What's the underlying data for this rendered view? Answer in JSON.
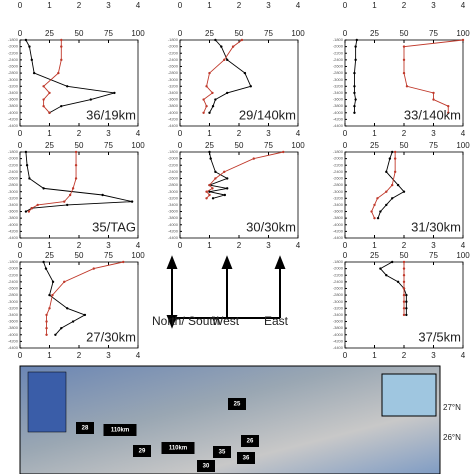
{
  "chart_data": {
    "type": "profile",
    "xlim": [
      0,
      100
    ],
    "xticks": [
      0,
      25,
      50,
      75,
      100
    ],
    "x2lim": [
      0,
      4
    ],
    "x2ticks": [
      0,
      1,
      2,
      3,
      4
    ],
    "ylim": [
      -1800,
      -4400
    ],
    "yticks": [
      -1800,
      -2000,
      -2200,
      -2400,
      -2600,
      -2800,
      -3000,
      -3200,
      -3400,
      -3600,
      -3800,
      -4000,
      -4200,
      -4400
    ],
    "panels": [
      {
        "label": "36/19km",
        "depths": [
          -1800,
          -2000,
          -2400,
          -2800,
          -3200,
          -3400,
          -3600,
          -3800,
          -4000
        ],
        "series": [
          {
            "color": "#000000",
            "values": [
              5,
              8,
              10,
              12,
              40,
              80,
              60,
              35,
              25
            ]
          },
          {
            "color": "#c0392b",
            "axis": "x2",
            "values": [
              1.4,
              1.4,
              1.4,
              1.3,
              0.8,
              1.0,
              0.8,
              0.8,
              1.0
            ]
          }
        ]
      },
      {
        "label": "29/140km",
        "depths": [
          -1800,
          -2000,
          -2400,
          -2800,
          -3200,
          -3400,
          -3600,
          -3800,
          -4000
        ],
        "series": [
          {
            "color": "#000000",
            "values": [
              30,
              35,
              40,
              55,
              60,
              40,
              30,
              28,
              25
            ]
          },
          {
            "color": "#c0392b",
            "axis": "x2",
            "values": [
              2.1,
              1.8,
              1.5,
              1.0,
              0.9,
              1.1,
              0.8,
              0.9,
              0.8
            ]
          }
        ]
      },
      {
        "label": "33/140km",
        "depths": [
          -1800,
          -2000,
          -2400,
          -2800,
          -3200,
          -3400,
          -3600,
          -3800,
          -4000
        ],
        "series": [
          {
            "color": "#000000",
            "values": [
              10,
              9,
              9,
              8,
              8,
              8,
              9,
              8,
              8
            ]
          },
          {
            "color": "#c0392b",
            "axis": "x2",
            "values": [
              4,
              2.0,
              2.0,
              2.0,
              2.1,
              3.0,
              3.0,
              3.5,
              3.5
            ]
          }
        ]
      },
      {
        "label": "35/TAG",
        "depths": [
          -1800,
          -2200,
          -2600,
          -2900,
          -3100,
          -3300,
          -3400,
          -3500,
          -3600
        ],
        "series": [
          {
            "color": "#000000",
            "values": [
              5,
              6,
              8,
              20,
              70,
              95,
              40,
              10,
              5
            ]
          },
          {
            "color": "#c0392b",
            "axis": "x2",
            "values": [
              1.9,
              1.9,
              1.9,
              1.8,
              1.7,
              1.5,
              0.6,
              0.4,
              0.3
            ]
          }
        ]
      },
      {
        "label": "30/30km",
        "depths": [
          -1800,
          -2000,
          -2400,
          -2600,
          -2800,
          -2900,
          -3000,
          -3100,
          -3200
        ],
        "series": [
          {
            "color": "#000000",
            "values": [
              25,
              26,
              30,
              40,
              25,
              40,
              25,
              38,
              28
            ]
          },
          {
            "color": "#c0392b",
            "axis": "x2",
            "values": [
              3.5,
              2.5,
              1.5,
              1.2,
              1.0,
              1.1,
              0.9,
              1.0,
              0.9
            ]
          }
        ]
      },
      {
        "label": "31/30km",
        "depths": [
          -1800,
          -2000,
          -2400,
          -2800,
          -3000,
          -3200,
          -3400,
          -3600,
          -3800
        ],
        "series": [
          {
            "color": "#000000",
            "values": [
              40,
              38,
              35,
              45,
              50,
              40,
              35,
              30,
              28
            ]
          },
          {
            "color": "#c0392b",
            "axis": "x2",
            "values": [
              1.7,
              1.7,
              1.7,
              1.6,
              1.4,
              1.1,
              1.0,
              0.9,
              1.0
            ]
          }
        ]
      },
      {
        "label": "27/30km",
        "depths": [
          -1800,
          -2000,
          -2400,
          -2800,
          -3200,
          -3400,
          -3600,
          -3800,
          -4000
        ],
        "series": [
          {
            "color": "#000000",
            "values": [
              20,
              22,
              28,
              25,
              40,
              55,
              45,
              35,
              30
            ]
          },
          {
            "color": "#c0392b",
            "axis": "x2",
            "values": [
              3.5,
              2.5,
              1.5,
              1.1,
              1.0,
              0.9,
              0.9,
              0.9,
              0.9
            ]
          }
        ]
      },
      {
        "label": "37/5km",
        "depths": [
          -1800,
          -2000,
          -2200,
          -2400,
          -2600,
          -2800,
          -3000,
          -3200,
          -3400
        ],
        "series": [
          {
            "color": "#000000",
            "values": [
              40,
              30,
              35,
              45,
              50,
              52,
              52,
              52,
              52
            ]
          },
          {
            "color": "#c0392b",
            "axis": "x2",
            "values": [
              2.0,
              2.0,
              2.0,
              2.0,
              2.0,
              2.0,
              2.0,
              2.0,
              2.0
            ]
          }
        ]
      }
    ]
  },
  "arrows": {
    "north_south": "North/ South",
    "west": "West",
    "east": "East"
  },
  "map": {
    "labels": [
      "25",
      "28",
      "110km",
      "29",
      "110km",
      "35",
      "36",
      "30",
      "26"
    ],
    "lat": [
      "27°N",
      "26°N"
    ]
  }
}
